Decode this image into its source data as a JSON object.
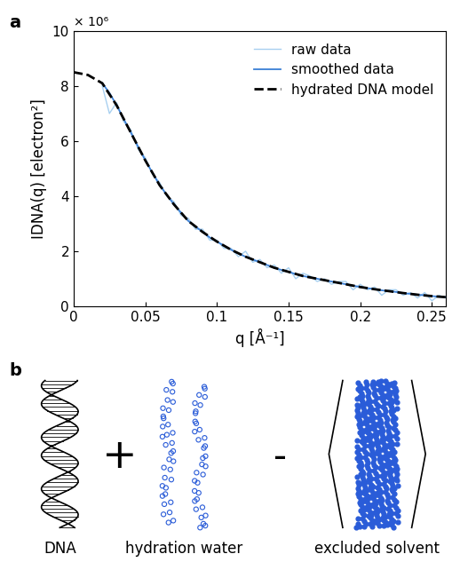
{
  "chart_data": {
    "type": "line",
    "panel_label": "a",
    "x_label": "q [Å⁻¹]",
    "y_label": "IDNA(q) [electron²]",
    "annotations": [
      "× 10⁶"
    ],
    "xlim": [
      0,
      0.26
    ],
    "xticks": [
      0,
      0.05,
      0.1,
      0.15,
      0.2,
      0.25
    ],
    "ylim": [
      0,
      10
    ],
    "yticks": [
      0,
      2,
      4,
      6,
      8,
      10
    ],
    "grid": false,
    "legend": "upper right",
    "series": [
      {
        "name": "raw data",
        "color": "#a8d0f0",
        "line_style": "solid",
        "x": [
          0.02,
          0.025,
          0.03,
          0.035,
          0.04,
          0.045,
          0.05,
          0.055,
          0.06,
          0.065,
          0.07,
          0.075,
          0.08,
          0.085,
          0.09,
          0.095,
          0.1,
          0.105,
          0.11,
          0.115,
          0.12,
          0.125,
          0.13,
          0.135,
          0.14,
          0.145,
          0.15,
          0.155,
          0.16,
          0.165,
          0.17,
          0.175,
          0.18,
          0.185,
          0.19,
          0.195,
          0.2,
          0.205,
          0.21,
          0.215,
          0.22,
          0.225,
          0.23,
          0.235,
          0.24,
          0.245,
          0.25,
          0.255,
          0.26
        ],
        "values": [
          8.0,
          7.0,
          7.4,
          6.7,
          6.4,
          5.7,
          5.4,
          4.8,
          4.5,
          4.0,
          3.8,
          3.3,
          3.2,
          2.8,
          2.8,
          2.4,
          2.4,
          2.1,
          2.1,
          1.8,
          2.0,
          1.6,
          1.7,
          1.4,
          1.5,
          1.2,
          1.4,
          1.0,
          1.2,
          1.1,
          0.9,
          1.0,
          0.8,
          0.9,
          0.9,
          0.6,
          0.8,
          0.6,
          0.7,
          0.4,
          0.6,
          0.6,
          0.4,
          0.5,
          0.3,
          0.5,
          0.2,
          0.4,
          0.3
        ]
      },
      {
        "name": "smoothed data",
        "color": "#3a7fd5",
        "line_style": "solid",
        "x": [
          0.02,
          0.025,
          0.03,
          0.035,
          0.04,
          0.045,
          0.05,
          0.055,
          0.06,
          0.065,
          0.07,
          0.075,
          0.08,
          0.085,
          0.09,
          0.095,
          0.1,
          0.105,
          0.11,
          0.115,
          0.12,
          0.125,
          0.13,
          0.135,
          0.14,
          0.145,
          0.15,
          0.155,
          0.16,
          0.165,
          0.17,
          0.175,
          0.18,
          0.185,
          0.19,
          0.195,
          0.2,
          0.205,
          0.21,
          0.215,
          0.22,
          0.225,
          0.23,
          0.235,
          0.24,
          0.245,
          0.25,
          0.255,
          0.26
        ],
        "values": [
          8.1,
          7.75,
          7.3,
          6.8,
          6.3,
          5.8,
          5.3,
          4.85,
          4.4,
          4.05,
          3.7,
          3.4,
          3.1,
          2.9,
          2.7,
          2.5,
          2.35,
          2.2,
          2.05,
          1.92,
          1.8,
          1.7,
          1.6,
          1.5,
          1.4,
          1.32,
          1.25,
          1.17,
          1.1,
          1.05,
          1.0,
          0.95,
          0.9,
          0.85,
          0.8,
          0.75,
          0.7,
          0.66,
          0.62,
          0.58,
          0.55,
          0.52,
          0.48,
          0.45,
          0.42,
          0.4,
          0.37,
          0.35,
          0.33
        ]
      },
      {
        "name": "hydrated DNA model",
        "color": "#000000",
        "line_style": "dashed",
        "x": [
          0,
          0.01,
          0.02,
          0.03,
          0.04,
          0.05,
          0.06,
          0.07,
          0.08,
          0.09,
          0.1,
          0.11,
          0.12,
          0.13,
          0.14,
          0.15,
          0.16,
          0.17,
          0.18,
          0.19,
          0.2,
          0.21,
          0.22,
          0.23,
          0.24,
          0.25,
          0.26
        ],
        "values": [
          8.5,
          8.4,
          8.1,
          7.3,
          6.3,
          5.3,
          4.4,
          3.7,
          3.1,
          2.7,
          2.35,
          2.05,
          1.8,
          1.6,
          1.4,
          1.25,
          1.1,
          1.0,
          0.9,
          0.8,
          0.7,
          0.62,
          0.55,
          0.48,
          0.42,
          0.37,
          0.33
        ]
      }
    ]
  },
  "diagram": {
    "panel_label": "b",
    "items": [
      "DNA",
      "hydration water",
      "excluded solvent"
    ],
    "operators": [
      "+",
      "-"
    ]
  }
}
